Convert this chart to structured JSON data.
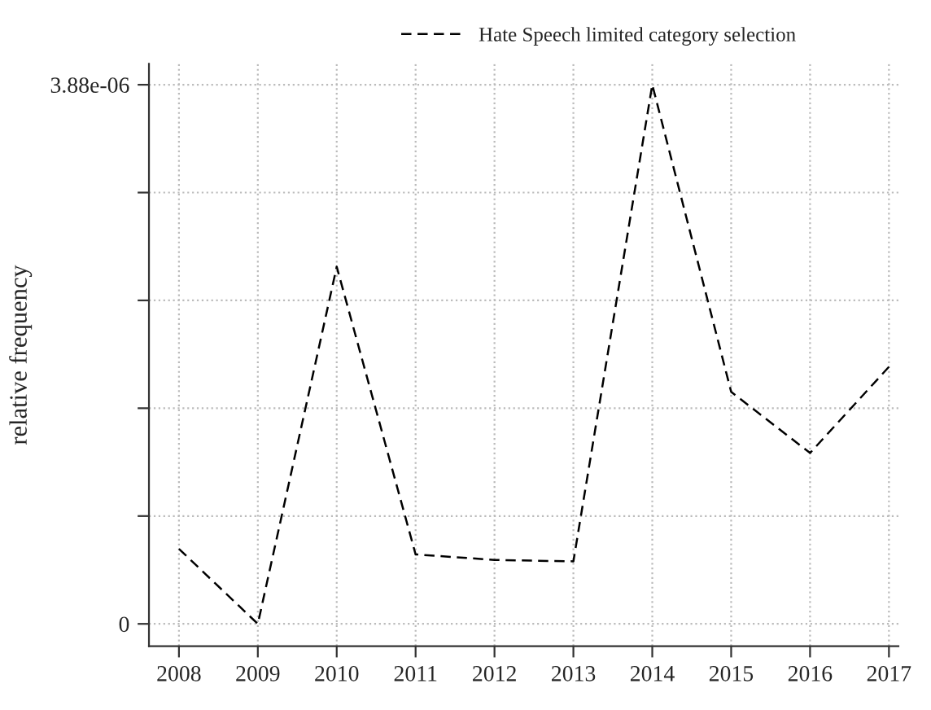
{
  "chart_data": {
    "type": "line",
    "ylabel": "relative frequency",
    "categories": [
      "2008",
      "2009",
      "2010",
      "2011",
      "2012",
      "2013",
      "2014",
      "2015",
      "2016",
      "2017"
    ],
    "series": [
      {
        "name": "Hate Speech limited category selection",
        "color": "#000000",
        "values": [
          5.4e-07,
          0,
          2.57e-06,
          5e-07,
          4.6e-07,
          4.5e-07,
          3.88e-06,
          1.67e-06,
          1.23e-06,
          1.85e-06
        ]
      }
    ],
    "ylim": [
      -1.6e-07,
      4.03e-06
    ],
    "yticks": [
      0,
      {
        "value": 7.76e-07,
        "label": null
      },
      {
        "value": 1.552e-06,
        "label": null
      },
      {
        "value": 2.328e-06,
        "label": null
      },
      {
        "value": 3.104e-06,
        "label": null
      },
      {
        "value": 3.88e-06,
        "label": "3.88e-06"
      }
    ],
    "grid": true,
    "legend": "top",
    "line_style": "dashed",
    "marker": "none"
  }
}
